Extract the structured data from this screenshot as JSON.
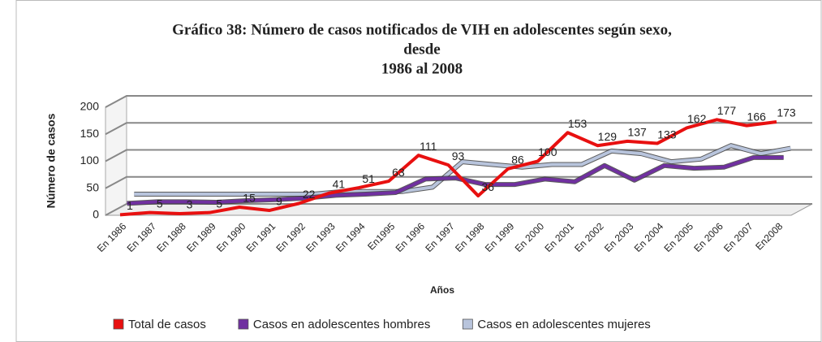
{
  "chart_data": {
    "type": "line",
    "title": [
      "Gráfico 38: Número de casos notificados de VIH en adolescentes según sexo,",
      "desde",
      "1986 al 2008"
    ],
    "x_label": "Años",
    "y_label": "Número de casos",
    "categories": [
      "En 1986",
      "En 1987",
      "En 1988",
      "En 1989",
      "En 1990",
      "En 1991",
      "En 1992",
      "En 1993",
      "En 1994",
      "En1995",
      "En 1996",
      "En 1997",
      "En 1998",
      "En 1999",
      "En 2000",
      "En 2001",
      "En 2002",
      "En 2003",
      "En 2004",
      "En 2005",
      "En 2006",
      "En 2007",
      "En2008"
    ],
    "series": [
      {
        "name": "Casos en adolescentes mujeres",
        "color": "#b8c4dc",
        "values": [
          25,
          25,
          25,
          25,
          25,
          25,
          25,
          30,
          30,
          30,
          38,
          85,
          80,
          75,
          80,
          80,
          105,
          100,
          85,
          90,
          115,
          100,
          110
        ]
      },
      {
        "name": "Casos en adolescentes hombres",
        "color": "#7030a0",
        "values": [
          15,
          18,
          18,
          17,
          20,
          22,
          25,
          30,
          32,
          35,
          60,
          62,
          50,
          50,
          60,
          55,
          85,
          58,
          85,
          80,
          82,
          100,
          100
        ]
      },
      {
        "name": "Total de casos",
        "color": "#e81010",
        "values": [
          1,
          5,
          3,
          5,
          15,
          9,
          22,
          41,
          51,
          63,
          111,
          93,
          36,
          86,
          100,
          153,
          129,
          137,
          133,
          162,
          177,
          166,
          173
        ],
        "show_labels": true
      }
    ],
    "legend_order": [
      2,
      1,
      0
    ],
    "ylim": [
      0,
      200
    ],
    "yticks": [
      0,
      50,
      100,
      150,
      200
    ],
    "grid": true
  }
}
